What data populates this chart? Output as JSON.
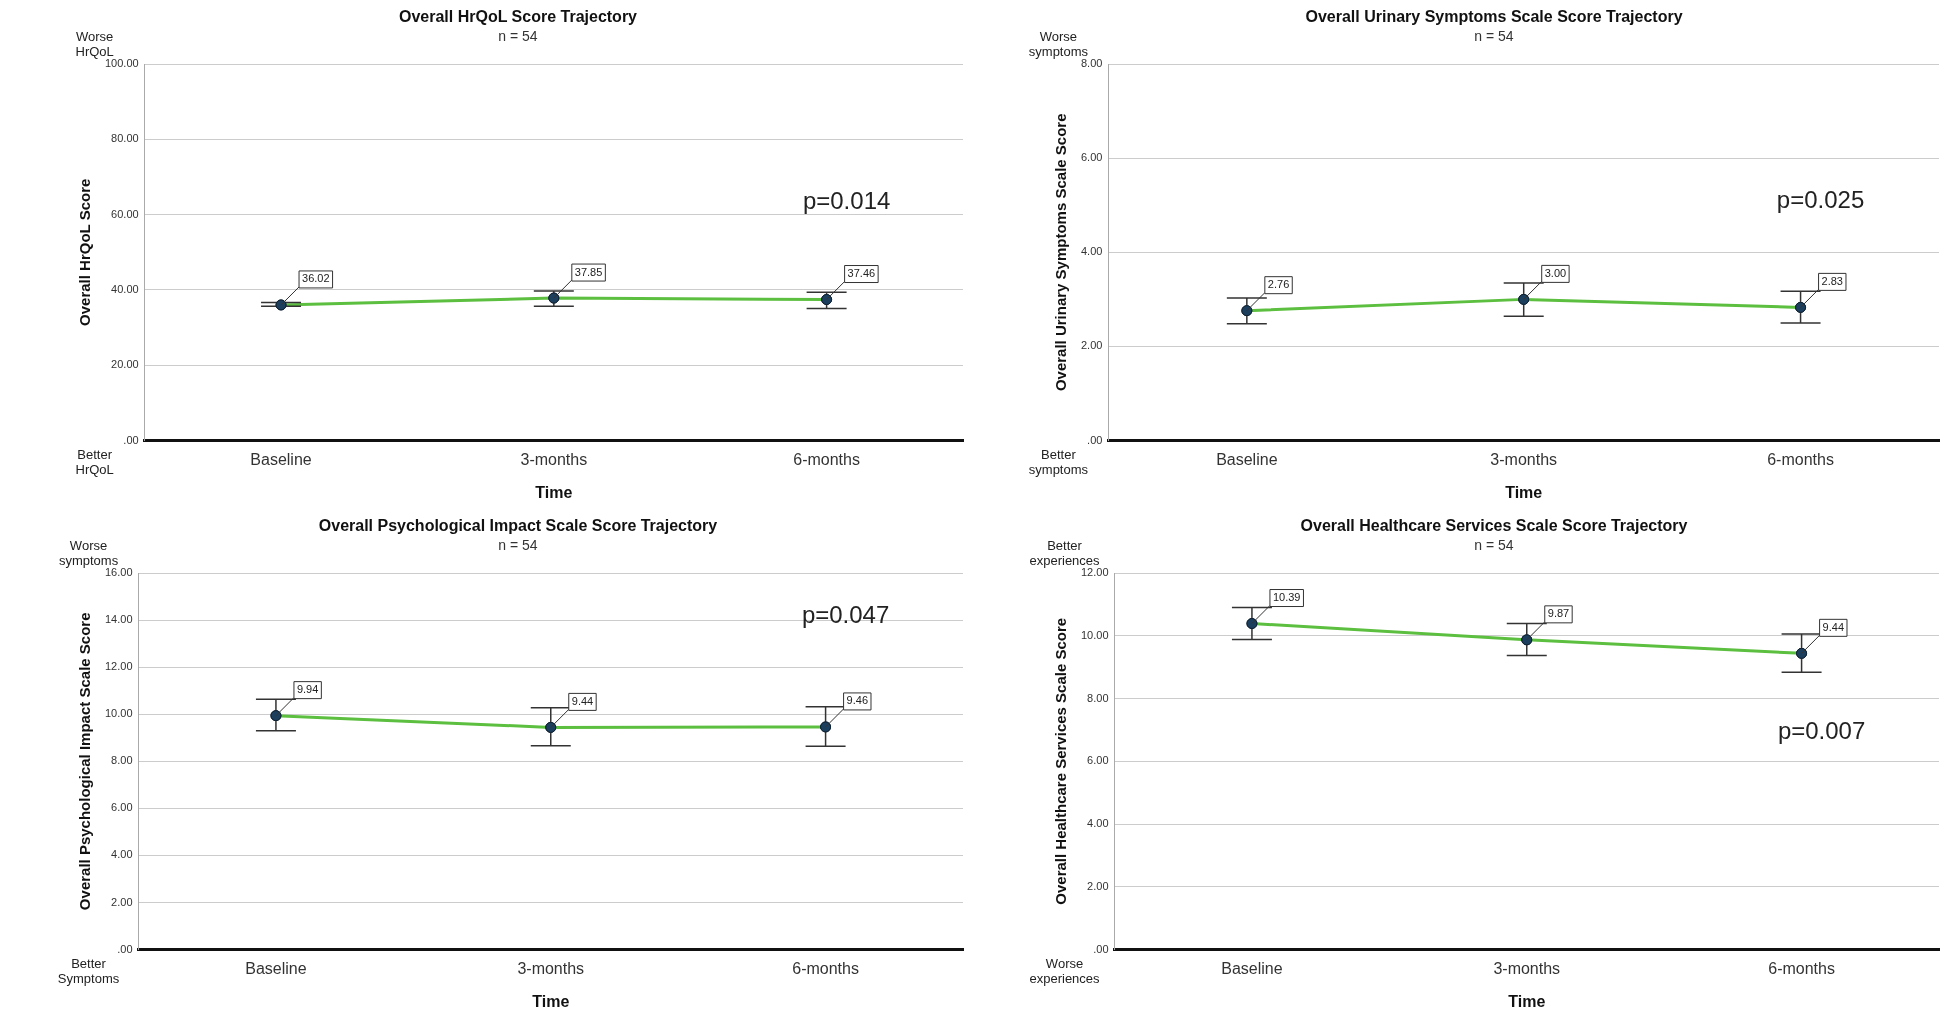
{
  "chart_data": [
    {
      "type": "line",
      "title": "Overall HrQoL Score Trajectory",
      "subtitle": "n = 54",
      "xlabel": "Time",
      "ylabel": "Overall HrQoL Score",
      "categories": [
        "Baseline",
        "3-months",
        "6-months"
      ],
      "series": [
        {
          "color": "#5cbf3f",
          "values": [
            36.02,
            37.85,
            37.46
          ],
          "value_labels": [
            "36.02",
            "37.85",
            "37.46"
          ],
          "errors": [
            [
              35.7,
              36.7
            ],
            [
              35.7,
              39.7
            ],
            [
              35.1,
              39.4
            ]
          ]
        }
      ],
      "ylim": [
        0,
        100
      ],
      "yticks": [
        {
          "value": 0,
          "label": ".00"
        },
        {
          "value": 20,
          "label": "20.00"
        },
        {
          "value": 40,
          "label": "40.00"
        },
        {
          "value": 60,
          "label": "60.00"
        },
        {
          "value": 80,
          "label": "80.00"
        },
        {
          "value": 100,
          "label": "100.00"
        }
      ],
      "grid": "y",
      "marker": "circle",
      "annotations": [
        "p=0.014",
        "Worse HrQoL",
        "Better HrQoL"
      ]
    },
    {
      "type": "line",
      "title": "Overall Urinary Symptoms Scale Score Trajectory",
      "subtitle": "n = 54",
      "xlabel": "Time",
      "ylabel": "Overall Urinary Symptoms Scale Score",
      "categories": [
        "Baseline",
        "3-months",
        "6-months"
      ],
      "series": [
        {
          "color": "#5cbf3f",
          "values": [
            2.76,
            3.0,
            2.83
          ],
          "value_labels": [
            "2.76",
            "3.00",
            "2.83"
          ],
          "errors": [
            [
              2.48,
              3.03
            ],
            [
              2.64,
              3.35
            ],
            [
              2.5,
              3.17
            ]
          ]
        }
      ],
      "ylim": [
        0,
        8
      ],
      "yticks": [
        {
          "value": 0,
          "label": ".00"
        },
        {
          "value": 2,
          "label": "2.00"
        },
        {
          "value": 4,
          "label": "4.00"
        },
        {
          "value": 6,
          "label": "6.00"
        },
        {
          "value": 8,
          "label": "8.00"
        }
      ],
      "grid": "y",
      "marker": "circle",
      "annotations": [
        "p=0.025",
        "Worse symptoms",
        "Better symptoms"
      ]
    },
    {
      "type": "line",
      "title": "Overall Psychological Impact Scale Score Trajectory",
      "subtitle": "n = 54",
      "xlabel": "Time",
      "ylabel": "Overall Psychological Impact Scale Score",
      "categories": [
        "Baseline",
        "3-months",
        "6-months"
      ],
      "series": [
        {
          "color": "#5cbf3f",
          "values": [
            9.94,
            9.44,
            9.46
          ],
          "value_labels": [
            "9.94",
            "9.44",
            "9.46"
          ],
          "errors": [
            [
              9.3,
              10.64
            ],
            [
              8.66,
              10.27
            ],
            [
              8.64,
              10.32
            ]
          ]
        }
      ],
      "ylim": [
        0,
        16
      ],
      "yticks": [
        {
          "value": 0,
          "label": ".00"
        },
        {
          "value": 2,
          "label": "2.00"
        },
        {
          "value": 4,
          "label": "4.00"
        },
        {
          "value": 6,
          "label": "6.00"
        },
        {
          "value": 8,
          "label": "8.00"
        },
        {
          "value": 10,
          "label": "10.00"
        },
        {
          "value": 12,
          "label": "12.00"
        },
        {
          "value": 14,
          "label": "14.00"
        },
        {
          "value": 16,
          "label": "16.00"
        }
      ],
      "grid": "y",
      "marker": "circle",
      "annotations": [
        "p=0.047",
        "Worse symptoms",
        "Better Symptoms"
      ]
    },
    {
      "type": "line",
      "title": "Overall Healthcare Services Scale Score Trajectory",
      "subtitle": "n = 54",
      "xlabel": "Time",
      "ylabel": "Overall Healthcare Services Scale Score",
      "categories": [
        "Baseline",
        "3-months",
        "6-months"
      ],
      "series": [
        {
          "color": "#5cbf3f",
          "values": [
            10.39,
            9.87,
            9.44
          ],
          "value_labels": [
            "10.39",
            "9.87",
            "9.44"
          ],
          "errors": [
            [
              9.88,
              10.9
            ],
            [
              9.37,
              10.39
            ],
            [
              8.84,
              10.06
            ]
          ]
        }
      ],
      "ylim": [
        0,
        12
      ],
      "yticks": [
        {
          "value": 0,
          "label": ".00"
        },
        {
          "value": 2,
          "label": "2.00"
        },
        {
          "value": 4,
          "label": "4.00"
        },
        {
          "value": 6,
          "label": "6.00"
        },
        {
          "value": 8,
          "label": "8.00"
        },
        {
          "value": 10,
          "label": "10.00"
        },
        {
          "value": 12,
          "label": "12.00"
        }
      ],
      "grid": "y",
      "marker": "circle",
      "annotations": [
        "p=0.007",
        "Better experiences",
        "Worse experiences"
      ]
    }
  ]
}
